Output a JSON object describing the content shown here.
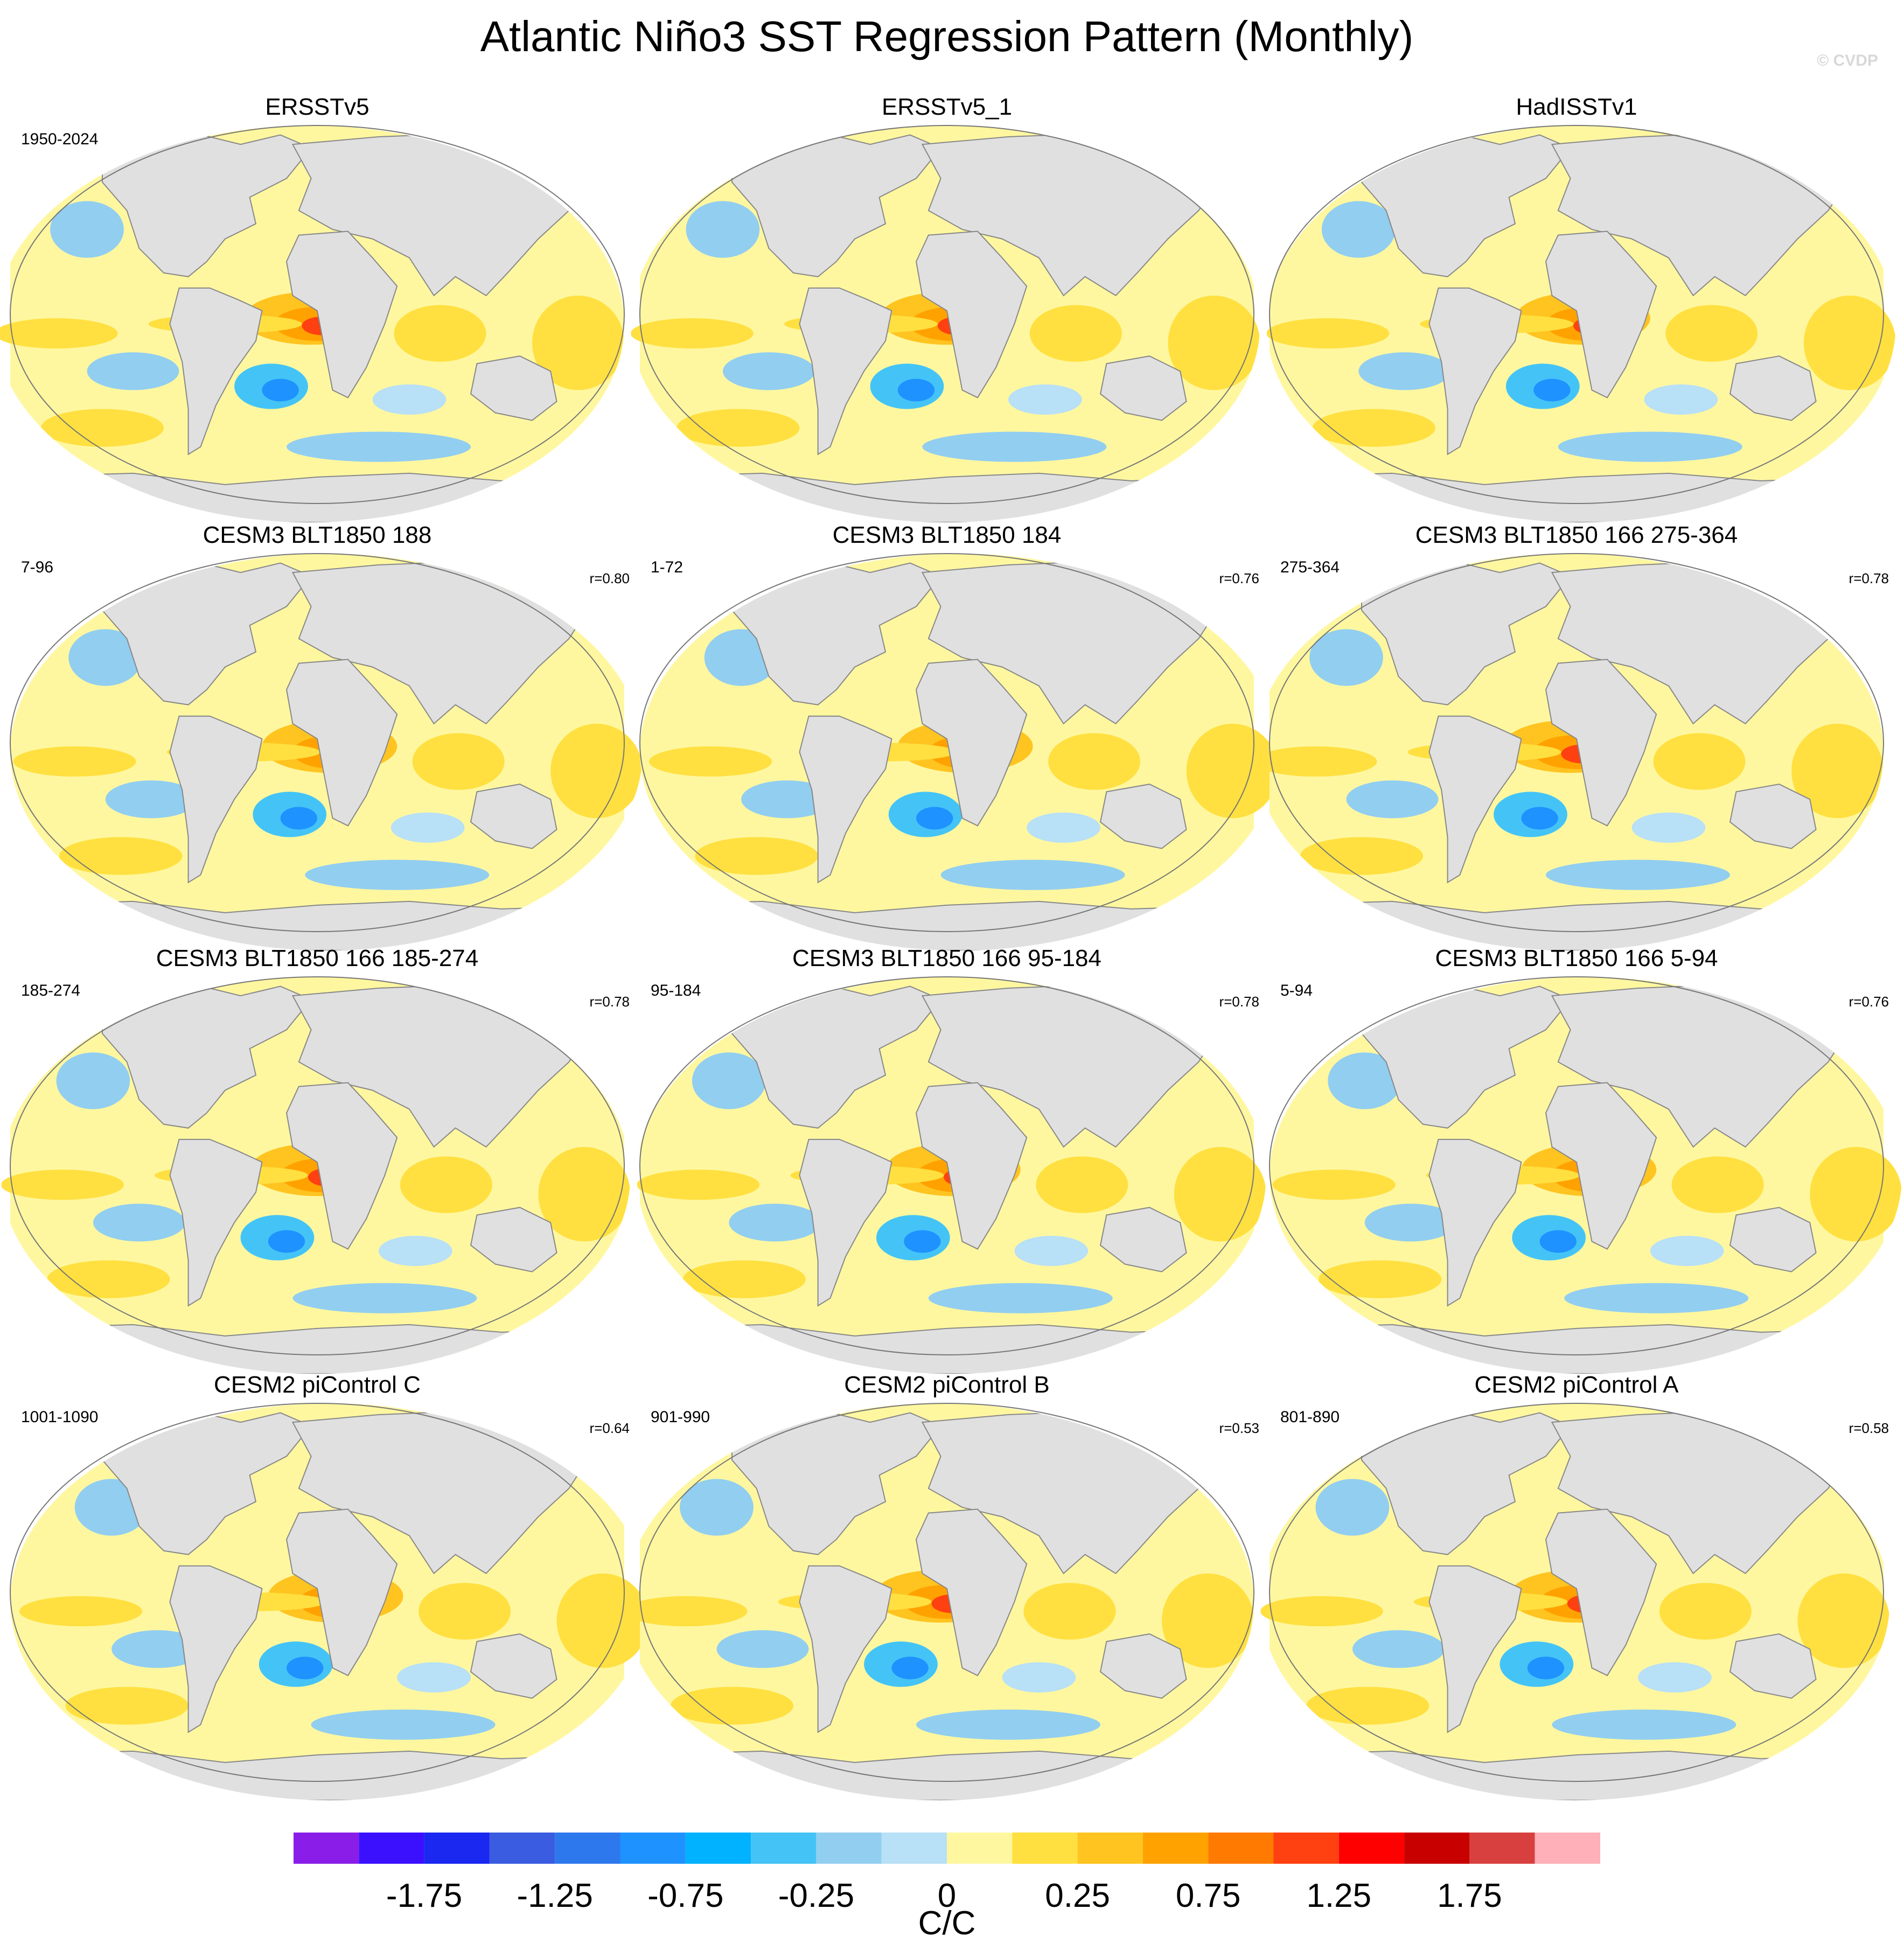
{
  "chart_data": {
    "type": "map_panel",
    "title": "Atlantic Niño3 SST Regression Pattern (Monthly)",
    "copyright": "© CVDP",
    "panels": [
      {
        "title": "ERSSTv5",
        "left": "1950-2024"
      },
      {
        "title": "ERSSTv5_1"
      },
      {
        "title": "HadISSTv1"
      },
      {
        "title": "CESM3 BLT1850 188",
        "left": "7-96",
        "right": "r=0.80"
      },
      {
        "title": "CESM3 BLT1850 184",
        "left": "1-72",
        "right": "r=0.76"
      },
      {
        "title": "CESM3 BLT1850 166 275-364",
        "left": "275-364",
        "right": "r=0.78"
      },
      {
        "title": "CESM3 BLT1850 166 185-274",
        "left": "185-274",
        "right": "r=0.78"
      },
      {
        "title": "CESM3 BLT1850 166 95-184",
        "left": "95-184",
        "right": "r=0.78"
      },
      {
        "title": "CESM3 BLT1850 166 5-94",
        "left": "5-94",
        "right": "r=0.76"
      },
      {
        "title": "CESM2 piControl C",
        "left": "1001-1090",
        "right": "r=0.64"
      },
      {
        "title": "CESM2 piControl B",
        "left": "901-990",
        "right": "r=0.53"
      },
      {
        "title": "CESM2 piControl A",
        "left": "801-890",
        "right": "r=0.58"
      }
    ],
    "colorbar": {
      "colors": [
        "#8a1ee8",
        "#3a10ff",
        "#1a28f0",
        "#3a5ce0",
        "#2e78ee",
        "#1e92ff",
        "#00b2ff",
        "#44c4f6",
        "#92cef0",
        "#b8e0f6",
        "#fff7a0",
        "#ffe040",
        "#ffc420",
        "#ffa200",
        "#ff7a00",
        "#ff4010",
        "#ff0000",
        "#c80000",
        "#d84040",
        "#ffb0b8"
      ],
      "ticks": [
        -1.75,
        -1.25,
        -0.75,
        -0.25,
        0,
        0.25,
        0.75,
        1.25,
        1.75
      ],
      "units": "C/C"
    }
  }
}
